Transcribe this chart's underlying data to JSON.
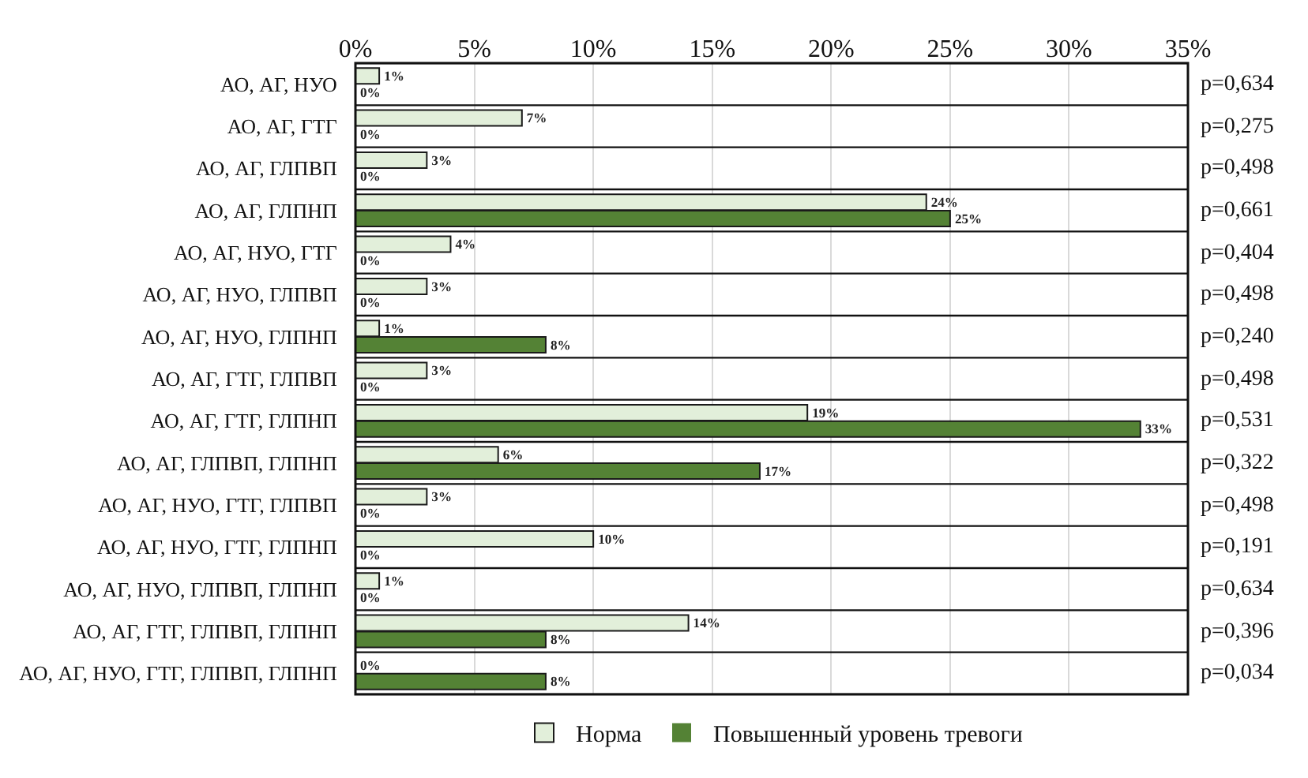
{
  "chart_data": {
    "type": "bar",
    "orientation": "horizontal",
    "categories": [
      "АО, АГ, НУО",
      "АО, АГ, ГТГ",
      "АО, АГ, ГЛПВП",
      "АО, АГ, ГЛПНП",
      "АО, АГ, НУО, ГТГ",
      "АО, АГ, НУО, ГЛПВП",
      "АО, АГ, НУО, ГЛПНП",
      "АО, АГ, ГТГ, ГЛПВП",
      "АО, АГ, ГТГ, ГЛПНП",
      "АО, АГ, ГЛПВП, ГЛПНП",
      "АО, АГ, НУО, ГТГ, ГЛПВП",
      "АО, АГ, НУО, ГТГ, ГЛПНП",
      "АО, АГ, НУО, ГЛПВП, ГЛПНП",
      "АО, АГ, ГТГ, ГЛПВП, ГЛПНП",
      "АО, АГ, НУО, ГТГ, ГЛПВП, ГЛПНП"
    ],
    "series": [
      {
        "name": "Норма",
        "color": "#e2efda",
        "values": [
          1,
          7,
          3,
          24,
          4,
          3,
          1,
          3,
          19,
          6,
          3,
          10,
          1,
          14,
          0
        ],
        "value_labels": [
          "1%",
          "7%",
          "3%",
          "24%",
          "4%",
          "3%",
          "1%",
          "3%",
          "19%",
          "6%",
          "3%",
          "10%",
          "1%",
          "14%",
          "0%"
        ]
      },
      {
        "name": "Повышенный уровень тревоги",
        "color": "#548235",
        "values": [
          0,
          0,
          0,
          25,
          0,
          0,
          8,
          0,
          33,
          17,
          0,
          0,
          0,
          8,
          8
        ],
        "value_labels": [
          "0%",
          "0%",
          "0%",
          "25%",
          "0%",
          "0%",
          "8%",
          "0%",
          "33%",
          "17%",
          "0%",
          "0%",
          "0%",
          "8%",
          "8%"
        ]
      }
    ],
    "xlim": [
      0,
      35
    ],
    "xticks": [
      {
        "value": 0,
        "label": "0%"
      },
      {
        "value": 5,
        "label": "5%"
      },
      {
        "value": 10,
        "label": "10%"
      },
      {
        "value": 15,
        "label": "15%"
      },
      {
        "value": 20,
        "label": "20%"
      },
      {
        "value": 25,
        "label": "25%"
      },
      {
        "value": 30,
        "label": "30%"
      },
      {
        "value": 35,
        "label": "35%"
      }
    ],
    "grid": "x",
    "legend": "bottom",
    "annotations": [
      "p=0,634",
      "p=0,275",
      "p=0,498",
      "p=0,661",
      "p=0,404",
      "p=0,498",
      "p=0,240",
      "p=0,498",
      "p=0,531",
      "p=0,322",
      "p=0,498",
      "p=0,191",
      "p=0,634",
      "p=0,396",
      "p=0,034"
    ]
  }
}
